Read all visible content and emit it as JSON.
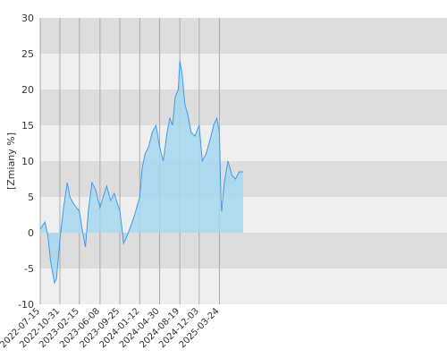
{
  "chart_data": {
    "type": "area",
    "ylabel": "[Zmiany %]",
    "xlabel": "",
    "title": "",
    "ylim": [
      -10,
      30
    ],
    "yticks": [
      -10,
      -5,
      0,
      5,
      10,
      15,
      20,
      25,
      30
    ],
    "grid": true,
    "colors": {
      "line": "#4499ee",
      "fill": "#a6d8f0",
      "band_dark": "#dddddd",
      "band_light": "#eeeeee",
      "gridline": "#aaaaaa"
    },
    "xticks": [
      "2022-07-15",
      "2022-10-31",
      "2023-02-15",
      "2023-06-08",
      "2023-09-25",
      "2024-01-12",
      "2024-04-30",
      "2024-08-19",
      "2024-12-03",
      "2025-03-24"
    ],
    "series": [
      {
        "x": [
          "2022-07-15",
          "2022-08-10",
          "2022-08-26",
          "2022-09-10",
          "2022-10-01",
          "2022-10-12",
          "2022-10-31",
          "2022-11-20",
          "2022-12-10",
          "2022-12-25",
          "2023-01-15",
          "2023-02-15",
          "2023-03-05",
          "2023-03-20",
          "2023-04-05",
          "2023-04-25",
          "2023-05-15",
          "2023-06-08",
          "2023-06-25",
          "2023-07-15",
          "2023-08-05",
          "2023-08-25",
          "2023-09-25",
          "2023-10-05",
          "2023-10-15",
          "2023-10-25",
          "2023-11-10",
          "2023-11-25",
          "2023-12-15",
          "2024-01-12",
          "2024-01-25",
          "2024-02-10",
          "2024-03-01",
          "2024-03-20",
          "2024-04-10",
          "2024-04-30",
          "2024-05-20",
          "2024-06-10",
          "2024-06-25",
          "2024-07-10",
          "2024-07-25",
          "2024-08-10",
          "2024-08-19",
          "2024-09-01",
          "2024-09-15",
          "2024-10-01",
          "2024-10-20",
          "2024-11-10",
          "2024-12-03",
          "2024-12-20",
          "2025-01-10",
          "2025-02-01",
          "2025-02-20",
          "2025-03-10",
          "2025-03-24",
          "2025-04-01",
          "2025-04-05",
          "2025-04-20",
          "2025-05-10",
          "2025-06-01",
          "2025-06-20",
          "2025-07-10",
          "2025-08-01"
        ],
        "values": [
          0.5,
          1.5,
          -0.5,
          -4.0,
          -7.0,
          -6.5,
          -1.0,
          3.5,
          7.0,
          5.0,
          4.0,
          3.0,
          0.0,
          -2.0,
          3.0,
          7.0,
          6.0,
          3.5,
          5.0,
          6.5,
          4.5,
          5.5,
          3.0,
          1.0,
          -1.5,
          -1.0,
          0.0,
          1.0,
          2.5,
          5.0,
          9.0,
          11.0,
          12.0,
          14.0,
          15.0,
          12.0,
          10.0,
          14.0,
          16.0,
          15.0,
          19.0,
          20.0,
          24.0,
          22.0,
          18.0,
          16.5,
          14.0,
          13.5,
          15.0,
          10.0,
          11.0,
          13.0,
          15.0,
          16.0,
          14.0,
          5.0,
          3.0,
          7.0,
          10.0,
          8.0,
          7.5,
          8.5,
          8.5
        ]
      }
    ]
  }
}
